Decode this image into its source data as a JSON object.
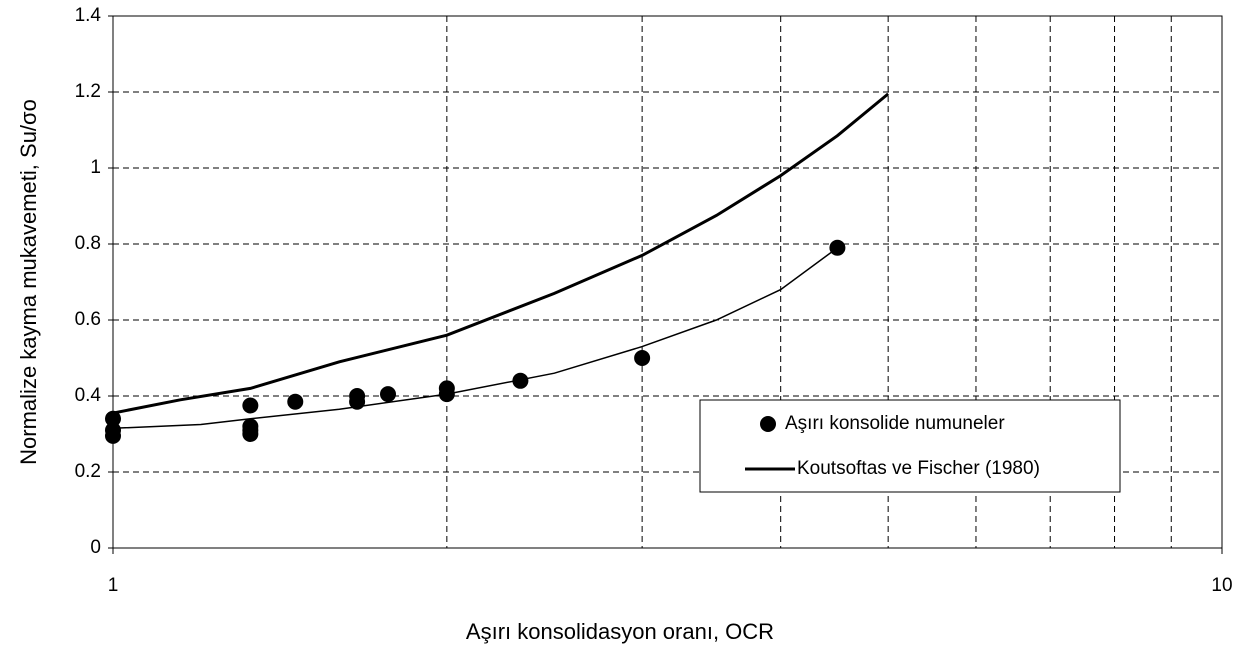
{
  "chart_data": {
    "type": "scatter",
    "x_label": "Aşırı konsolidasyon oranı, OCR",
    "y_label": "Normalize kayma mukavemeti, Su/σo",
    "xlim": [
      1,
      10
    ],
    "xticks": [
      1,
      10
    ],
    "xscale": "log",
    "ylim": [
      0,
      1.4
    ],
    "yticks": [
      0,
      0.2,
      0.4,
      0.6,
      0.8,
      1,
      1.2,
      1.4
    ],
    "grid": true,
    "legend": "lower right",
    "series": [
      {
        "name": "Aşırı konsolide numuneler",
        "type": "scatter",
        "color": "#000000",
        "x": [
          1,
          1,
          1,
          1.33,
          1.33,
          1.33,
          1.33,
          1.46,
          1.66,
          1.66,
          1.77,
          2,
          2,
          2.33,
          3,
          4.5
        ],
        "values": [
          0.34,
          0.31,
          0.295,
          0.375,
          0.32,
          0.31,
          0.3,
          0.385,
          0.4,
          0.385,
          0.405,
          0.42,
          0.405,
          0.44,
          0.5,
          0.79
        ]
      },
      {
        "name": "Koutsoftas ve Fischer (1980)",
        "type": "line",
        "color": "#000000",
        "x": [
          1,
          1.15,
          1.33,
          1.6,
          2,
          2.5,
          3,
          3.5,
          4,
          4.5,
          5
        ],
        "values": [
          0.355,
          0.39,
          0.42,
          0.49,
          0.56,
          0.67,
          0.77,
          0.875,
          0.98,
          1.085,
          1.195
        ]
      },
      {
        "type": "line",
        "color": "#000000",
        "x": [
          1,
          1.2,
          1.33,
          1.6,
          2,
          2.5,
          3,
          3.5,
          4,
          4.5
        ],
        "values": [
          0.315,
          0.325,
          0.34,
          0.365,
          0.405,
          0.46,
          0.53,
          0.6,
          0.68,
          0.79
        ]
      }
    ]
  }
}
